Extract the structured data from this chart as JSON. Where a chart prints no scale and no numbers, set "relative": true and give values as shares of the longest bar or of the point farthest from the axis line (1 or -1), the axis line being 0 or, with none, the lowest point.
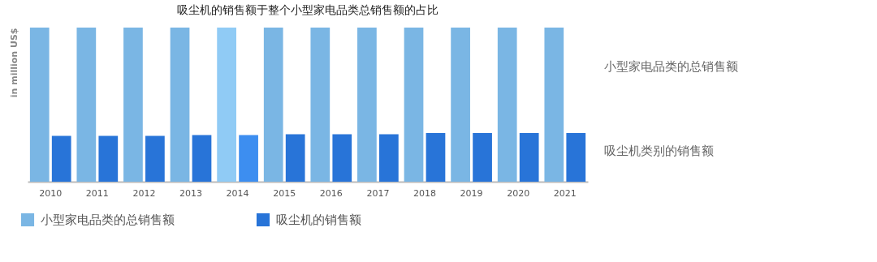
{
  "chart_data": {
    "type": "bar",
    "title": "吸尘机的销售额于整个小型家电品类总销售额的占比",
    "ylabel": "in million US$",
    "relative": true,
    "legend": "bottom",
    "categories": [
      "2010",
      "2011",
      "2012",
      "2013",
      "2014",
      "2015",
      "2016",
      "2017",
      "2018",
      "2019",
      "2020",
      "2021"
    ],
    "series": [
      {
        "name": "小型家电品类的总销售额",
        "color": "#7ab6e4",
        "colors": [
          "#7ab6e4",
          "#7ab6e4",
          "#7ab6e4",
          "#7ab6e4",
          "#90cbf5",
          "#7ab6e4",
          "#7ab6e4",
          "#7ab6e4",
          "#7ab6e4",
          "#7ab6e4",
          "#7ab6e4",
          "#7ab6e4"
        ],
        "values": [
          1,
          1,
          1,
          1,
          1,
          1,
          1,
          1,
          1,
          1,
          1,
          1
        ]
      },
      {
        "name": "吸尘机的销售额",
        "color": "#2874d8",
        "colors": [
          "#2874d8",
          "#2874d8",
          "#2874d8",
          "#2874d8",
          "#3d8ef0",
          "#2874d8",
          "#2874d8",
          "#2874d8",
          "#2874d8",
          "#2874d8",
          "#2874d8",
          "#2874d8"
        ],
        "values": [
          0.297,
          0.297,
          0.297,
          0.302,
          0.302,
          0.308,
          0.308,
          0.308,
          0.316,
          0.316,
          0.316,
          0.316
        ]
      }
    ],
    "annotations": [
      "小型家电品类的总销售额",
      "吸尘机类别的销售额"
    ]
  }
}
